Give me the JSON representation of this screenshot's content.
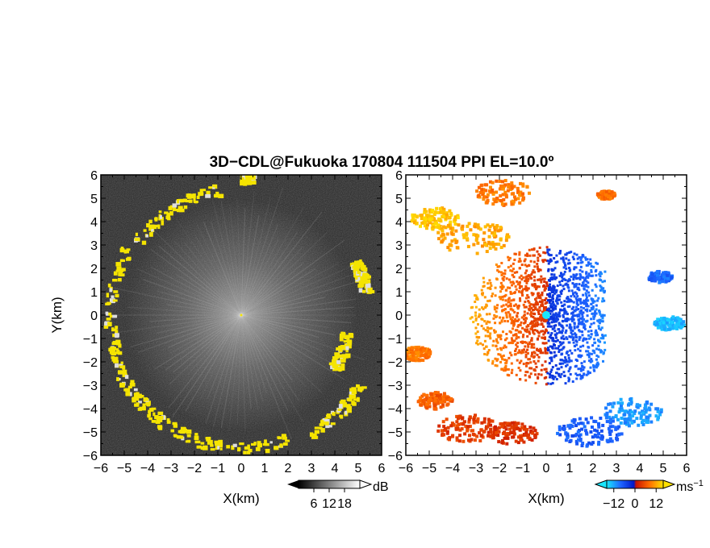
{
  "title": "3D−CDL@Fukuoka 170804 111504 PPI EL=10.0º",
  "chart_data": [
    {
      "type": "heatmap",
      "panel": "left",
      "quantity": "backscatter intensity (grayscale) with yellow hard-target returns",
      "xlabel": "X(km)",
      "ylabel": "Y(km)",
      "xlim": [
        -6,
        6
      ],
      "ylim": [
        -6,
        6
      ],
      "x_ticks": [
        "−6",
        "−5",
        "−4",
        "−3",
        "−2",
        "−1",
        "0",
        "1",
        "2",
        "3",
        "4",
        "5",
        "6"
      ],
      "y_ticks": [
        "6",
        "5",
        "4",
        "3",
        "2",
        "1",
        "0",
        "−1",
        "−2",
        "−3",
        "−4",
        "−5",
        "−6"
      ],
      "colorbar": {
        "unit": "dB",
        "ticks": [
          "6",
          "12",
          "18"
        ],
        "range": [
          0,
          24
        ],
        "colors": [
          "#000000",
          "#ffffff"
        ],
        "extensions": "both"
      },
      "highlight_color": "#f5e400"
    },
    {
      "type": "heatmap",
      "panel": "right",
      "quantity": "radial Doppler velocity",
      "xlabel": "X(km)",
      "ylabel": "",
      "xlim": [
        -6,
        6
      ],
      "ylim": [
        -6,
        6
      ],
      "x_ticks": [
        "−6",
        "−5",
        "−4",
        "−3",
        "−2",
        "−1",
        "0",
        "1",
        "2",
        "3",
        "4",
        "5",
        "6"
      ],
      "y_ticks": [
        "6",
        "5",
        "4",
        "3",
        "2",
        "1",
        "0",
        "−1",
        "−2",
        "−3",
        "−4",
        "−5",
        "−6"
      ],
      "colorbar": {
        "unit": "ms",
        "unit_exponent": "−1",
        "ticks": [
          "−12",
          "0",
          "12"
        ],
        "range": [
          -16,
          16
        ],
        "colors": [
          "#19e6ff",
          "#1e64ff",
          "#0018c8",
          "#c81400",
          "#ff6a00",
          "#ffe100"
        ],
        "extensions": "both"
      }
    }
  ]
}
